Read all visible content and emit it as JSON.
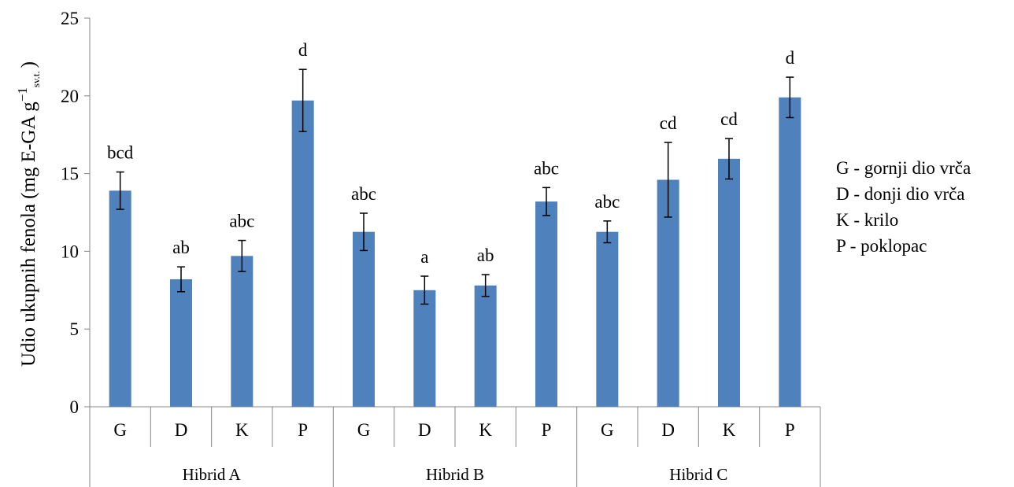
{
  "chart_data": {
    "type": "bar",
    "title": "",
    "ylabel": {
      "main": "Udio ukupnih fenola (mg E-GA g",
      "sup": "−1",
      "sub": "sv.t.",
      "close": ")"
    },
    "xlabel": "",
    "ylim": [
      0,
      25
    ],
    "yticks": [
      0,
      5,
      10,
      15,
      20,
      25
    ],
    "grid": false,
    "color": "#4f81bd",
    "groups": [
      {
        "name": "Hibrid A",
        "bars": [
          {
            "category": "G",
            "value": 13.9,
            "error": 1.2,
            "letter": "bcd"
          },
          {
            "category": "D",
            "value": 8.2,
            "error": 0.8,
            "letter": "ab"
          },
          {
            "category": "K",
            "value": 9.7,
            "error": 1.0,
            "letter": "abc"
          },
          {
            "category": "P",
            "value": 19.7,
            "error": 2.0,
            "letter": "d"
          }
        ]
      },
      {
        "name": "Hibrid B",
        "bars": [
          {
            "category": "G",
            "value": 11.25,
            "error": 1.2,
            "letter": "abc"
          },
          {
            "category": "D",
            "value": 7.5,
            "error": 0.9,
            "letter": "a"
          },
          {
            "category": "K",
            "value": 7.8,
            "error": 0.7,
            "letter": "ab"
          },
          {
            "category": "P",
            "value": 13.2,
            "error": 0.9,
            "letter": "abc"
          }
        ]
      },
      {
        "name": "Hibrid C",
        "bars": [
          {
            "category": "G",
            "value": 11.25,
            "error": 0.7,
            "letter": "abc"
          },
          {
            "category": "D",
            "value": 14.6,
            "error": 2.4,
            "letter": "cd"
          },
          {
            "category": "K",
            "value": 15.95,
            "error": 1.3,
            "letter": "cd"
          },
          {
            "category": "P",
            "value": 19.9,
            "error": 1.3,
            "letter": "d"
          }
        ]
      }
    ],
    "legend_position": "right",
    "legend": [
      "G - gornji dio vrča",
      "D - donji dio vrča",
      "K - krilo",
      "P - poklopac"
    ]
  }
}
